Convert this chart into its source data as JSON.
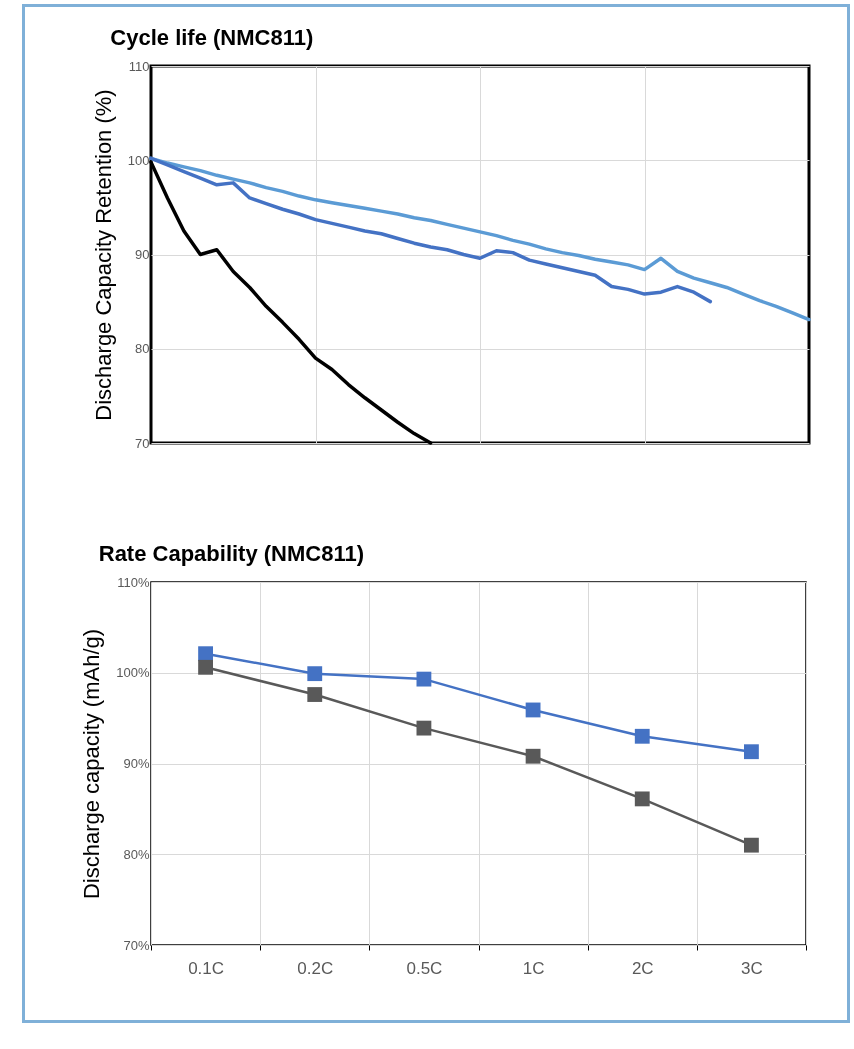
{
  "chart_data": [
    {
      "type": "line",
      "title": "Cycle life (NMC811)",
      "ylabel": "Discharge Capacity Retention (%)",
      "categories": [
        null,
        null,
        null,
        null,
        null,
        null,
        null,
        null,
        null,
        null,
        null,
        null,
        null,
        null,
        null,
        null,
        null,
        null,
        null,
        null,
        null,
        null,
        null,
        null,
        null,
        null,
        null,
        null,
        null,
        null,
        null,
        null,
        null,
        null,
        null,
        null,
        null,
        null,
        null,
        null,
        null
      ],
      "series": [
        {
          "color": "#5b9bd5",
          "values": [
            100.2,
            99.7,
            99.3,
            98.9,
            98.4,
            98.0,
            97.6,
            97.1,
            96.7,
            96.2,
            95.8,
            95.5,
            95.2,
            94.9,
            94.6,
            94.3,
            93.9,
            93.6,
            93.2,
            92.8,
            92.4,
            92.0,
            91.5,
            91.1,
            90.6,
            90.2,
            89.9,
            89.5,
            89.2,
            88.9,
            88.4,
            89.6,
            88.2,
            87.5,
            87.0,
            86.5,
            85.8,
            85.1,
            84.5,
            83.8,
            83.1
          ]
        },
        {
          "color": "#4472c4",
          "values": [
            100.2,
            99.5,
            98.8,
            98.1,
            97.4,
            97.6,
            96.0,
            95.4,
            94.8,
            94.3,
            93.7,
            93.3,
            92.9,
            92.5,
            92.2,
            91.7,
            91.2,
            90.8,
            90.5,
            90.0,
            89.6,
            90.4,
            90.2,
            89.4,
            89.0,
            88.6,
            88.2,
            87.8,
            86.6,
            86.3,
            85.8,
            86.0,
            86.6,
            86.0,
            85.0,
            null,
            null,
            null,
            null,
            null,
            null
          ]
        },
        {
          "color": "#000000",
          "values": [
            99.8,
            96.0,
            92.5,
            90.0,
            90.5,
            88.2,
            86.5,
            84.5,
            82.8,
            81.0,
            79.0,
            77.8,
            76.2,
            74.8,
            73.5,
            72.2,
            71.0,
            70.0,
            null,
            null,
            null,
            null,
            null,
            null,
            null,
            null,
            null,
            null,
            null,
            null,
            null,
            null,
            null,
            null,
            null,
            null,
            null,
            null,
            null,
            null,
            null
          ]
        }
      ],
      "ylim": [
        70,
        110
      ],
      "yticks": [
        70,
        80,
        90,
        100,
        110
      ],
      "grid": true,
      "tick_labels": "y",
      "marker": "none",
      "line_style": "solid"
    },
    {
      "type": "line",
      "title": "Rate Capability (NMC811)",
      "ylabel": "Discharge capacity (mAh/g)",
      "categories": [
        "0.1C",
        "0.2C",
        "0.5C",
        "1C",
        "2C",
        "3C"
      ],
      "series": [
        {
          "color": "#4472c4",
          "values": [
            102.1,
            99.9,
            99.3,
            95.9,
            93.0,
            91.3
          ]
        },
        {
          "color": "#595959",
          "values": [
            100.6,
            97.6,
            93.9,
            90.8,
            86.1,
            81.0
          ]
        }
      ],
      "ylim": [
        70,
        110
      ],
      "yticks": [
        {
          "value": 70,
          "label": "70%"
        },
        {
          "value": 80,
          "label": "80%"
        },
        {
          "value": 90,
          "label": "90%"
        },
        {
          "value": 100,
          "label": "100%"
        },
        {
          "value": 110,
          "label": "110%"
        }
      ],
      "grid": true,
      "marker": "square",
      "line_style": "solid"
    }
  ]
}
